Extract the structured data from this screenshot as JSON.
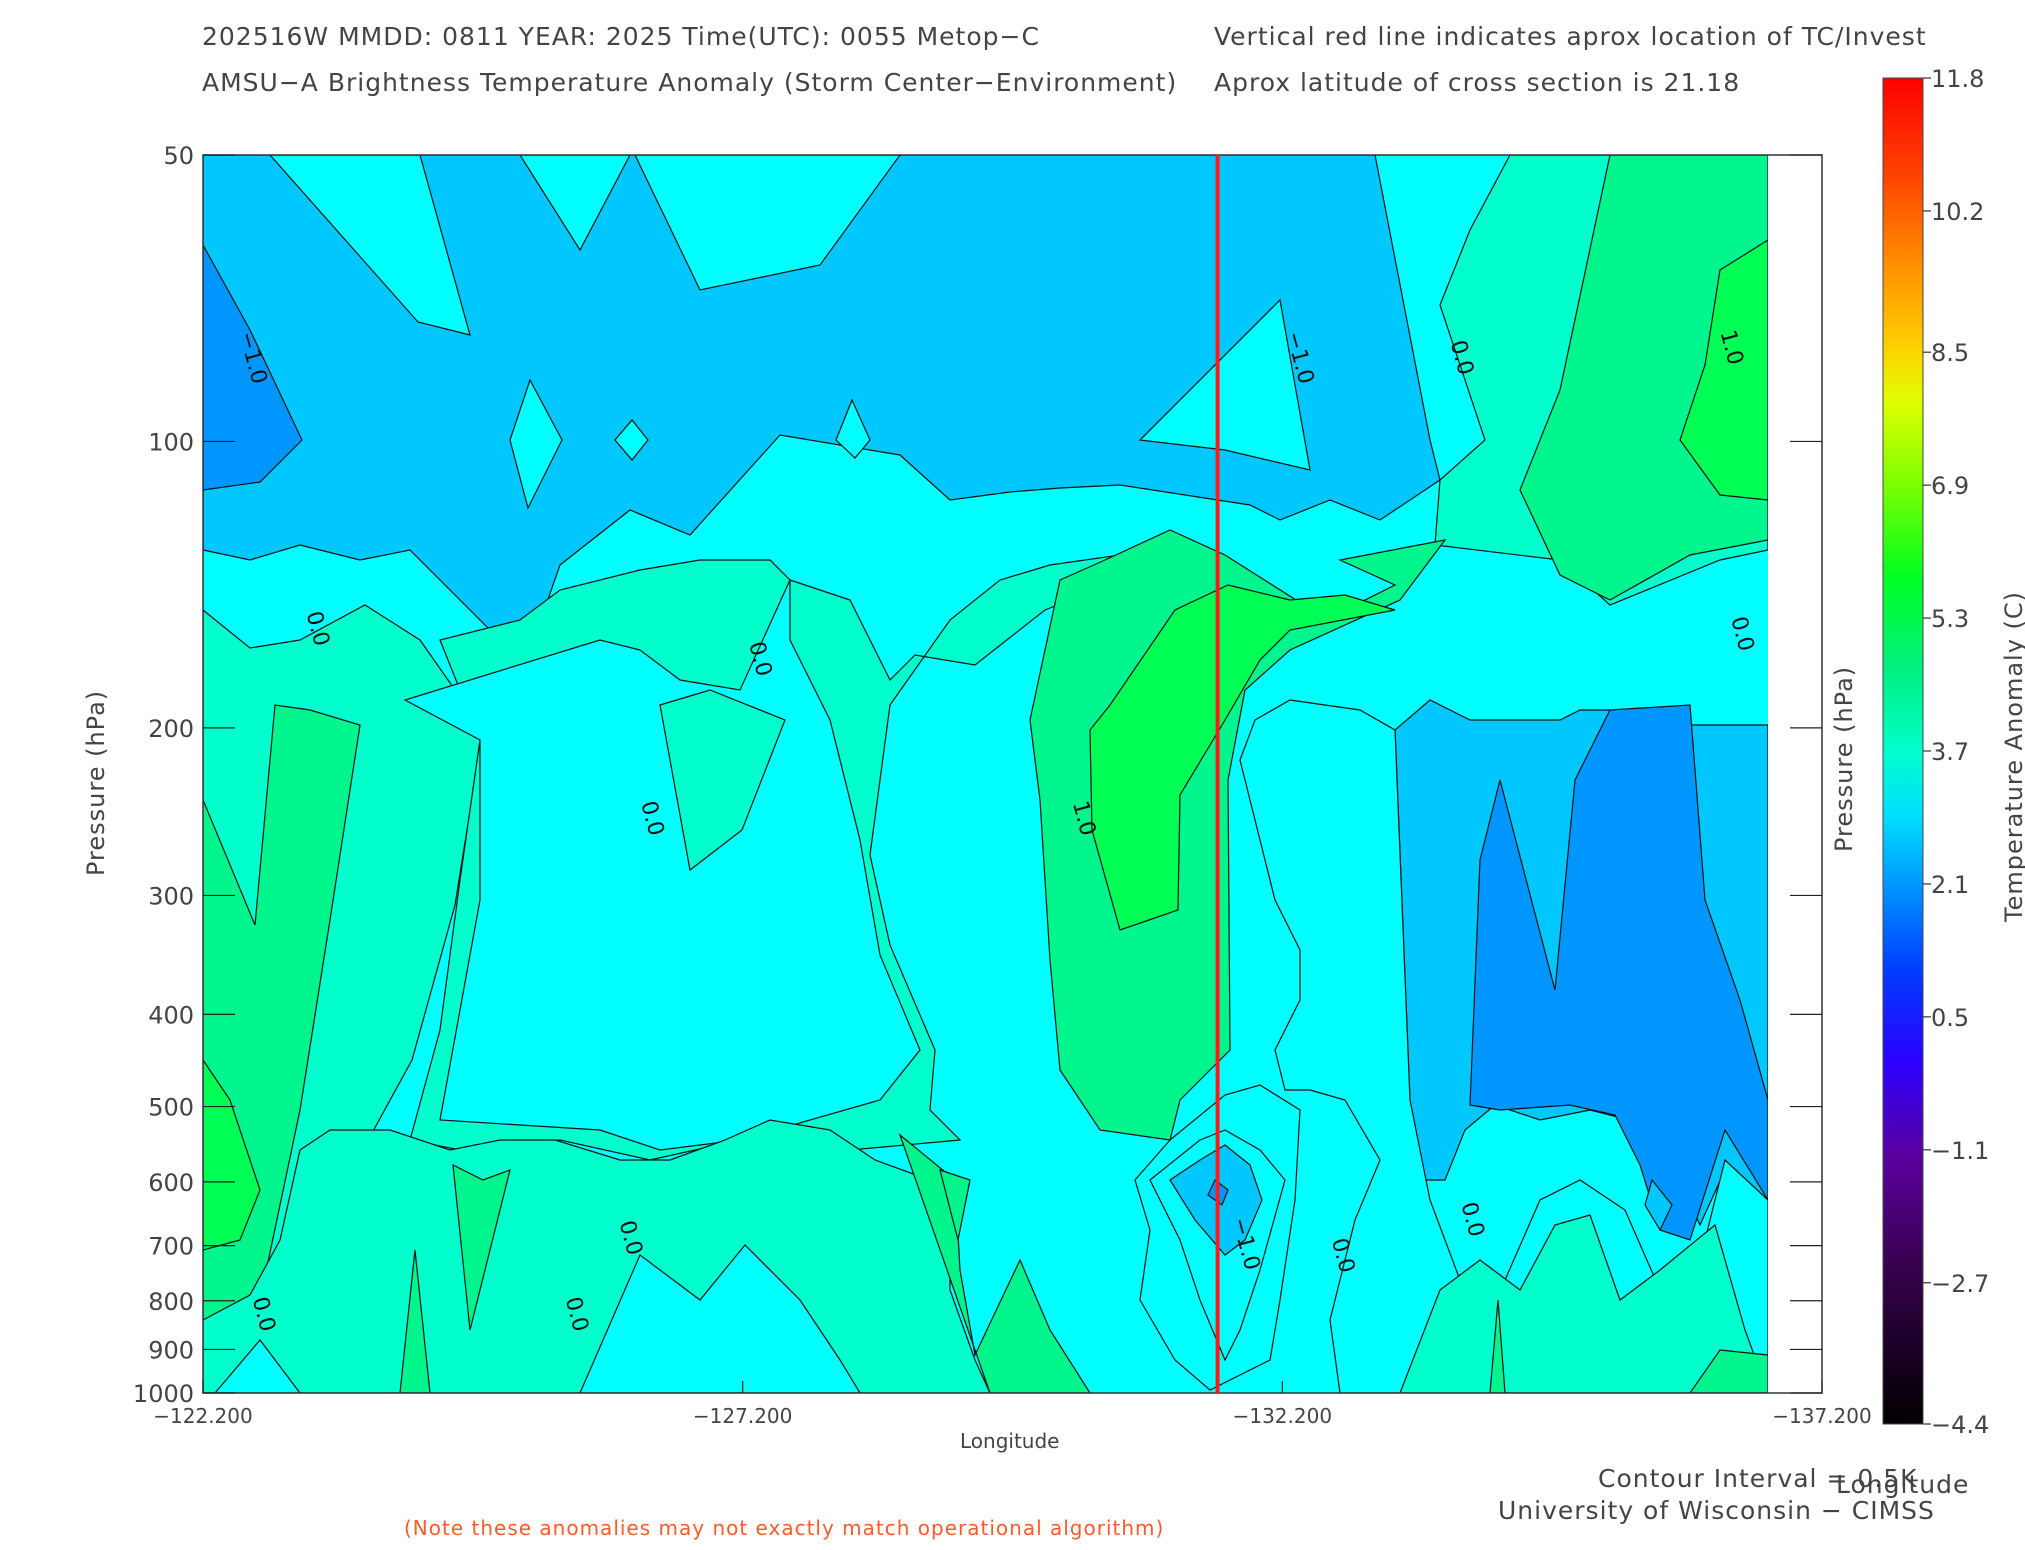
{
  "header": {
    "line1_left": "202516W  MMDD: 0811 YEAR: 2025 Time(UTC): 0055 Metop−C",
    "line2_left": "AMSU−A Brightness Temperature Anomaly (Storm Center−Environment)",
    "line1_right": "Vertical red line indicates aprox location of TC/Invest",
    "line2_right": "Aprox latitude of cross section is 21.18"
  },
  "footer": {
    "contour_interval": "Contour Interval = 0.5K",
    "credit": "University of Wisconsin − CIMSS",
    "note": "(Note these anomalies may not exactly match operational algorithm)"
  },
  "colors": {
    "tc_line": "#ff1a1a",
    "note": "#ff5a2a",
    "fill_neg1": "#0096ff",
    "fill_neg05": "#00c8ff",
    "fill_0": "#00ffff",
    "fill_05": "#00ffcc",
    "fill_1": "#00f58c",
    "fill_15": "#00ff55"
  },
  "chart_data": {
    "type": "heatmap",
    "title": "AMSU−A Brightness Temperature Anomaly (Storm Center−Environment)",
    "xlabel": "Longitude",
    "ylabel": "Pressure (hPa)",
    "ylabel_right": "Pressure (hPa)",
    "xlabel_right": "Longitude",
    "x_ticks": [
      "−122.200",
      "−127.200",
      "−132.200",
      "−137.200"
    ],
    "x_range": [
      -122.2,
      -137.2
    ],
    "y_ticks": [
      "50",
      "100",
      "200",
      "300",
      "400",
      "500",
      "600",
      "700",
      "800",
      "900",
      "1000"
    ],
    "y_range": [
      50,
      1000
    ],
    "y_scale": "log",
    "tc_longitude": -131.6,
    "cross_section_latitude": 21.18,
    "contour_interval_k": 0.5,
    "contour_labels": [
      {
        "text": "−1.0",
        "lon": -122.6,
        "p": 82
      },
      {
        "text": "0.0",
        "lon": -123.2,
        "p": 158
      },
      {
        "text": "0.0",
        "lon": -127.3,
        "p": 170
      },
      {
        "text": "0.0",
        "lon": -126.3,
        "p": 250
      },
      {
        "text": "1.0",
        "lon": -130.3,
        "p": 250
      },
      {
        "text": "−1.0",
        "lon": -132.3,
        "p": 82
      },
      {
        "text": "0.0",
        "lon": -133.8,
        "p": 82
      },
      {
        "text": "1.0",
        "lon": -136.3,
        "p": 80
      },
      {
        "text": "0.0",
        "lon": -136.4,
        "p": 160
      },
      {
        "text": "0.0",
        "lon": -122.7,
        "p": 830
      },
      {
        "text": "0.0",
        "lon": -125.6,
        "p": 830
      },
      {
        "text": "0.0",
        "lon": -126.1,
        "p": 690
      },
      {
        "text": "−1.0",
        "lon": -131.8,
        "p": 700
      },
      {
        "text": "0.0",
        "lon": -132.7,
        "p": 720
      },
      {
        "text": "0.0",
        "lon": -133.9,
        "p": 660
      }
    ],
    "colorbar": {
      "label": "Temperature Anomaly (C)",
      "min": -4.4,
      "max": 11.8,
      "ticks": [
        "11.8",
        "10.2",
        "8.5",
        "6.9",
        "5.3",
        "3.7",
        "2.1",
        "0.5",
        "−1.1",
        "−2.7",
        "−4.4"
      ]
    }
  }
}
